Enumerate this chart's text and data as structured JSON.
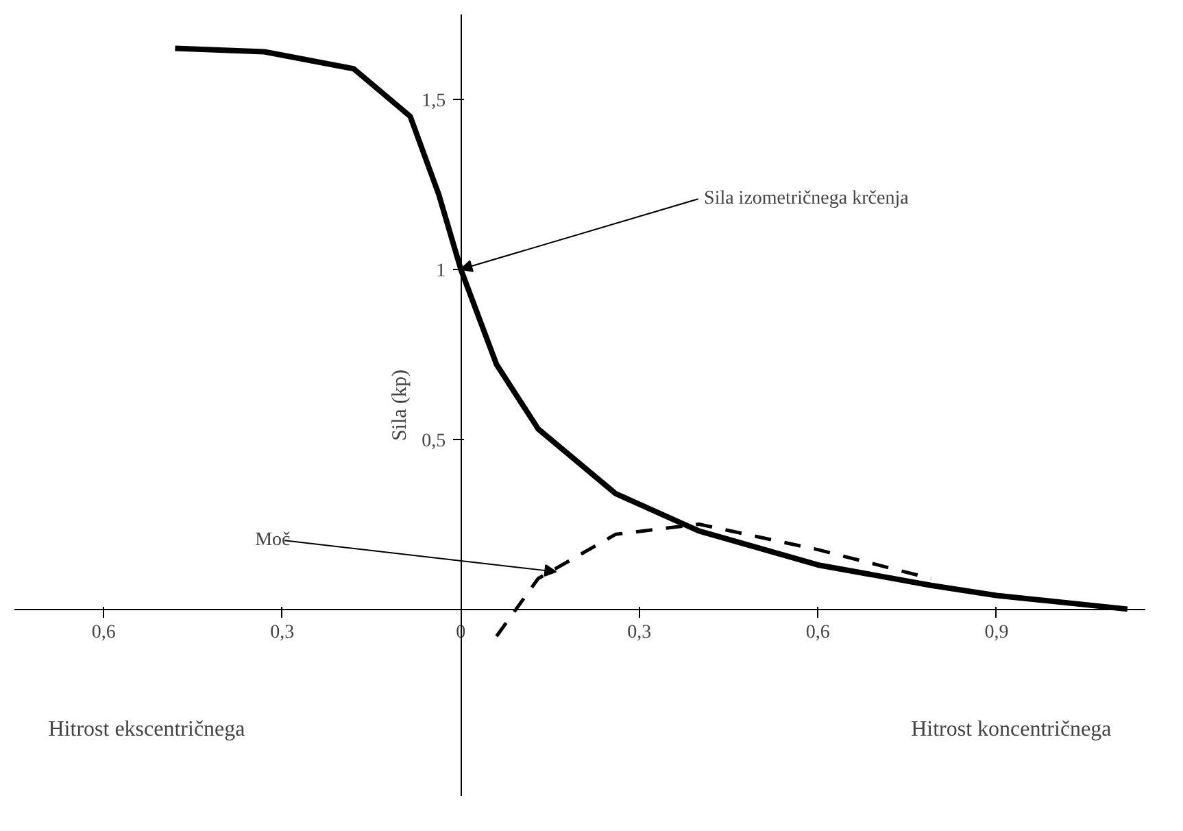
{
  "chart_data": {
    "type": "line",
    "ylabel": "Sila (kp)",
    "xlim": [
      -0.75,
      1.15
    ],
    "ylim": [
      -0.55,
      1.75
    ],
    "xticks": [
      {
        "value": -0.6,
        "label": "0,6"
      },
      {
        "value": -0.3,
        "label": "0,3"
      },
      0,
      {
        "value": 0.3,
        "label": "0,3"
      },
      {
        "value": 0.6,
        "label": "0,6"
      },
      {
        "value": 0.9,
        "label": "0,9"
      }
    ],
    "yticks": [
      {
        "value": 0.5,
        "label": "0,5"
      },
      1,
      {
        "value": 1.5,
        "label": "1,5"
      }
    ],
    "marker": "none",
    "series": [
      {
        "color": "#000000",
        "line_style": "solid",
        "x": [
          -0.48,
          -0.33,
          -0.18,
          -0.085,
          -0.037,
          0,
          0.06,
          0.13,
          0.26,
          0.4,
          0.6,
          0.79,
          0.9,
          1.12
        ],
        "values": [
          1.65,
          1.64,
          1.59,
          1.45,
          1.22,
          1.0,
          0.72,
          0.53,
          0.34,
          0.23,
          0.13,
          0.07,
          0.04,
          0.0
        ]
      },
      {
        "color": "#000000",
        "line_style": "dashed",
        "x": [
          0.06,
          0.13,
          0.26,
          0.4,
          0.6,
          0.79
        ],
        "values": [
          -0.08,
          0.09,
          0.22,
          0.25,
          0.175,
          0.09
        ]
      }
    ],
    "annotations": [
      {
        "text": "Sila izometričnega krčenja",
        "x": 0,
        "y": 1.0
      },
      {
        "text": "Moč",
        "x": 0.16,
        "y": 0.11
      },
      "Hitrost ekscentričnega",
      "Hitrost koncentričnega"
    ]
  }
}
